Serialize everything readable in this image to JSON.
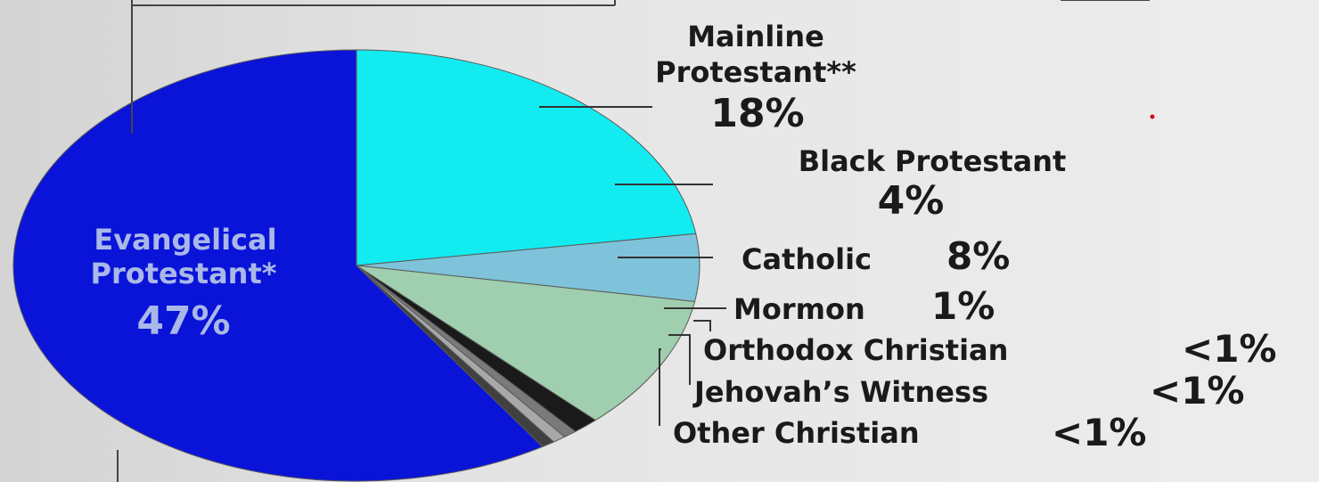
{
  "chart_data": {
    "type": "pie",
    "categories": [
      "Evangelical Protestant*",
      "Mainline Protestant**",
      "Black Protestant",
      "Catholic",
      "Mormon",
      "Orthodox Christian",
      "Jehovah’s Witness",
      "Other Christian"
    ],
    "values": [
      47,
      18,
      4,
      8,
      1,
      0.5,
      0.5,
      0.5
    ],
    "value_labels": [
      "47%",
      "18%",
      "4%",
      "8%",
      "1%",
      "<1%",
      "<1%",
      "<1%"
    ],
    "colors": [
      "#0a14d8",
      "#12ecf0",
      "#7ec3d9",
      "#9fcfae",
      "#1a1a1a",
      "#7a7a7a",
      "#a8a8a8",
      "#404040"
    ],
    "labels": {
      "evangelical_line1": "Evangelical",
      "evangelical_line2": "Protestant*",
      "mainline_line1": "Mainline",
      "mainline_line2": "Protestant**",
      "black_protestant": "Black Protestant",
      "catholic": "Catholic",
      "mormon": "Mormon",
      "orthodox": "Orthodox Christian",
      "jehovah": "Jehovah’s Witness",
      "other": "Other Christian"
    }
  }
}
